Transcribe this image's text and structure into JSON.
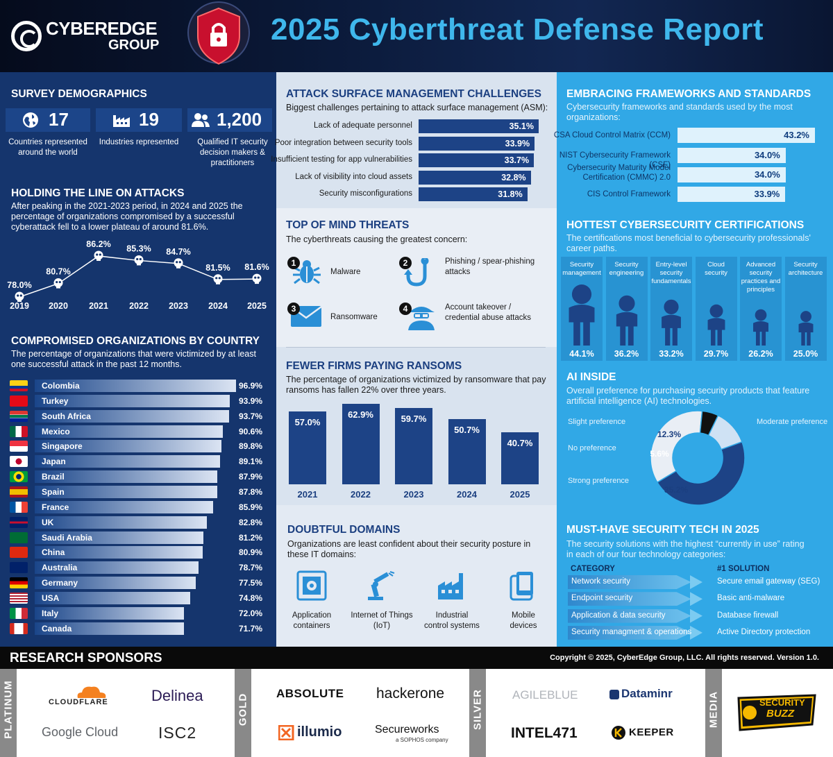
{
  "header": {
    "logo_line1": "CYBEREDGE",
    "logo_line2": "GROUP",
    "title": "2025 Cyberthreat Defense Report"
  },
  "demographics": {
    "title": "SURVEY DEMOGRAPHICS",
    "items": [
      {
        "icon": "globe-icon",
        "value": "17",
        "label": "Countries represented around the world"
      },
      {
        "icon": "factory-icon",
        "value": "19",
        "label": "Industries represented"
      },
      {
        "icon": "people-icon",
        "value": "1,200",
        "label": "Qualified IT security decision makers & practitioners"
      }
    ]
  },
  "holding": {
    "title": "HOLDING THE LINE ON ATTACKS",
    "text": "After peaking in the 2021-2023 period, in 2024 and 2025 the percentage of organizations compromised by a successful cyberattack fell to a lower plateau of around 81.6%.",
    "chart_data": {
      "type": "line",
      "x": [
        "2019",
        "2020",
        "2021",
        "2022",
        "2023",
        "2024",
        "2025"
      ],
      "values": [
        78.0,
        80.7,
        86.2,
        85.3,
        84.7,
        81.5,
        81.6
      ],
      "labels": [
        "78.0%",
        "80.7%",
        "86.2%",
        "85.3%",
        "84.7%",
        "81.5%",
        "81.6%"
      ]
    }
  },
  "countries": {
    "title": "COMPROMISED ORGANIZATIONS BY COUNTRY",
    "text": "The percentage of organizations that were victimized by at least one successful attack in the past 12 months.",
    "chart_data": {
      "type": "bar",
      "categories": [
        "Colombia",
        "Turkey",
        "South Africa",
        "Mexico",
        "Singapore",
        "Japan",
        "Brazil",
        "Spain",
        "France",
        "UK",
        "Saudi Arabia",
        "China",
        "Australia",
        "Germany",
        "USA",
        "Italy",
        "Canada"
      ],
      "values": [
        96.9,
        93.9,
        93.7,
        90.6,
        89.8,
        89.1,
        87.9,
        87.8,
        85.9,
        82.8,
        81.2,
        80.9,
        78.7,
        77.5,
        74.8,
        72.0,
        71.7
      ],
      "labels": [
        "96.9%",
        "93.9%",
        "93.7%",
        "90.6%",
        "89.8%",
        "89.1%",
        "87.9%",
        "87.8%",
        "85.9%",
        "82.8%",
        "81.2%",
        "80.9%",
        "78.7%",
        "77.5%",
        "74.8%",
        "72.0%",
        "71.7%"
      ]
    }
  },
  "asm": {
    "title": "ATTACK SURFACE MANAGEMENT CHALLENGES",
    "text": "Biggest challenges pertaining to attack surface management (ASM):",
    "chart_data": {
      "type": "bar",
      "categories": [
        "Lack of adequate personnel",
        "Poor integration between security tools",
        "Insufficient testing for app vulnerabilities",
        "Lack of visibility into cloud assets",
        "Security misconfigurations"
      ],
      "values": [
        35.1,
        33.9,
        33.7,
        32.8,
        31.8
      ],
      "labels": [
        "35.1%",
        "33.9%",
        "33.7%",
        "32.8%",
        "31.8%"
      ]
    }
  },
  "threats": {
    "title": "TOP OF MIND THREATS",
    "text": "The cyberthreats causing the greatest concern:",
    "items": [
      {
        "num": "1",
        "label": "Malware",
        "icon": "bug-icon"
      },
      {
        "num": "2",
        "label": "Phishing / spear-phishing attacks",
        "icon": "hook-icon"
      },
      {
        "num": "3",
        "label": "Ransomware",
        "icon": "envelope-icon"
      },
      {
        "num": "4",
        "label": "Account takeover / credential abuse attacks",
        "icon": "hacker-icon"
      }
    ]
  },
  "ransom": {
    "title": "FEWER FIRMS PAYING RANSOMS",
    "text": "The percentage of organizations victimized by ransomware that pay ransoms has fallen 22% over three years.",
    "chart_data": {
      "type": "bar",
      "categories": [
        "2021",
        "2022",
        "2023",
        "2024",
        "2025"
      ],
      "values": [
        57.0,
        62.9,
        59.7,
        50.7,
        40.7
      ],
      "labels": [
        "57.0%",
        "62.9%",
        "59.7%",
        "50.7%",
        "40.7%"
      ]
    }
  },
  "domains": {
    "title": "DOUBTFUL DOMAINS",
    "text": "Organizations are least confident about their security posture in these IT domains:",
    "items": [
      {
        "label1": "Application",
        "label2": "containers",
        "icon": "container-icon"
      },
      {
        "label1": "Internet of Things",
        "label2": "(IoT)",
        "icon": "robot-arm-icon"
      },
      {
        "label1": "Industrial",
        "label2": "control systems",
        "icon": "factory-icon"
      },
      {
        "label1": "Mobile devices",
        "label2": "",
        "icon": "mobile-icon"
      }
    ]
  },
  "frameworks": {
    "title": "EMBRACING FRAMEWORKS AND STANDARDS",
    "text": "Cybersecurity frameworks and standards used by the most organizations:",
    "chart_data": {
      "type": "bar",
      "categories": [
        "CSA Cloud Control Matrix (CCM)",
        "NIST Cybersecurity Framework (CSF)",
        "Cybersecurity Maturity Model Certification (CMMC) 2.0",
        "CIS Control Framework"
      ],
      "values": [
        43.2,
        34.0,
        34.0,
        33.9
      ],
      "labels": [
        "43.2%",
        "34.0%",
        "34.0%",
        "33.9%"
      ]
    }
  },
  "certs": {
    "title": "HOTTEST CYBERSECURITY CERTIFICATIONS",
    "text": "The certifications most beneficial to cybersecurity professionals' career paths.",
    "chart_data": {
      "type": "bar",
      "categories": [
        "Security management",
        "Security engineering",
        "Entry-level security fundamentals",
        "Cloud security",
        "Advanced security practices and principles",
        "Security architecture"
      ],
      "values": [
        44.1,
        36.2,
        33.2,
        29.7,
        26.2,
        25.0
      ],
      "labels": [
        "44.1%",
        "36.2%",
        "33.2%",
        "29.7%",
        "26.2%",
        "25.0%"
      ]
    }
  },
  "ai": {
    "title": "AI INSIDE",
    "text": "Overall preference for purchasing security products that feature artificial intelligence (AI) technologies.",
    "chart_data": {
      "type": "pie",
      "categories": [
        "Moderate preference",
        "Strong preference",
        "No preference",
        "Slight preference"
      ],
      "values": [
        46.9,
        35.2,
        5.6,
        12.3
      ],
      "labels": [
        "46.9%",
        "35.2%",
        "5.6%",
        "12.3%"
      ],
      "colors": [
        "#1d4386",
        "#e9eef5",
        "#111111",
        "#cfe2f4"
      ]
    }
  },
  "musthave": {
    "title": "MUST-HAVE SECURITY TECH IN 2025",
    "text": "The security solutions with the highest “currently in use” rating in each of our four technology categories:",
    "col1": "CATEGORY",
    "col2": "#1 SOLUTION",
    "rows": [
      {
        "category": "Network security",
        "solution": "Secure email gateway (SEG)"
      },
      {
        "category": "Endpoint security",
        "solution": "Basic anti-malware"
      },
      {
        "category": "Application & data security",
        "solution": "Database firewall"
      },
      {
        "category": "Security managment & operations",
        "solution": "Active Directory protection"
      }
    ]
  },
  "sponsors": {
    "title": "RESEARCH SPONSORS",
    "copyright": "Copyright © 2025, CyberEdge Group, LLC. All rights reserved. Version 1.0.",
    "tiers": [
      "PLATINUM",
      "GOLD",
      "SILVER",
      "MEDIA"
    ],
    "platinum": [
      "CLOUDFLARE",
      "Delinea",
      "Google Cloud",
      "ISC2"
    ],
    "gold": [
      "ABSOLUTE",
      "hackerone",
      "illumio",
      "Secureworks",
      "a SOPHOS company"
    ],
    "silver": [
      "AGILEBLUE",
      "Dataminr",
      "INTEL471",
      "KEEPER"
    ],
    "media": [
      "SECURITY",
      "BUZZ"
    ]
  }
}
